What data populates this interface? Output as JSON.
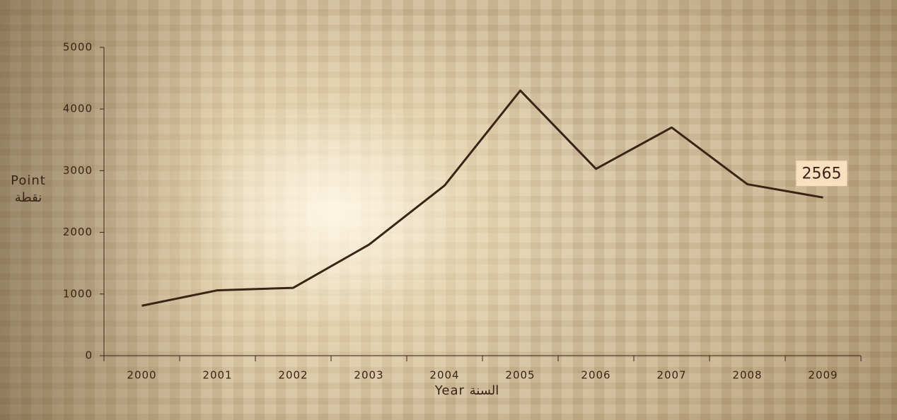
{
  "chart_data": {
    "type": "line",
    "categories": [
      "2000",
      "2001",
      "2002",
      "2003",
      "2004",
      "2005",
      "2006",
      "2007",
      "2008",
      "2009"
    ],
    "series": [
      {
        "name": "Point",
        "color": "#3a2415",
        "values": [
          810,
          1060,
          1100,
          1800,
          2760,
          4300,
          3030,
          3700,
          2780,
          2565
        ]
      }
    ],
    "ylim": [
      0,
      5000
    ],
    "yticks": [
      0,
      1000,
      2000,
      3000,
      4000,
      5000
    ],
    "ylabel": [
      "Point",
      "نقطة"
    ],
    "xlabel": "Year السنة",
    "data_labels": "last",
    "grid": false
  }
}
